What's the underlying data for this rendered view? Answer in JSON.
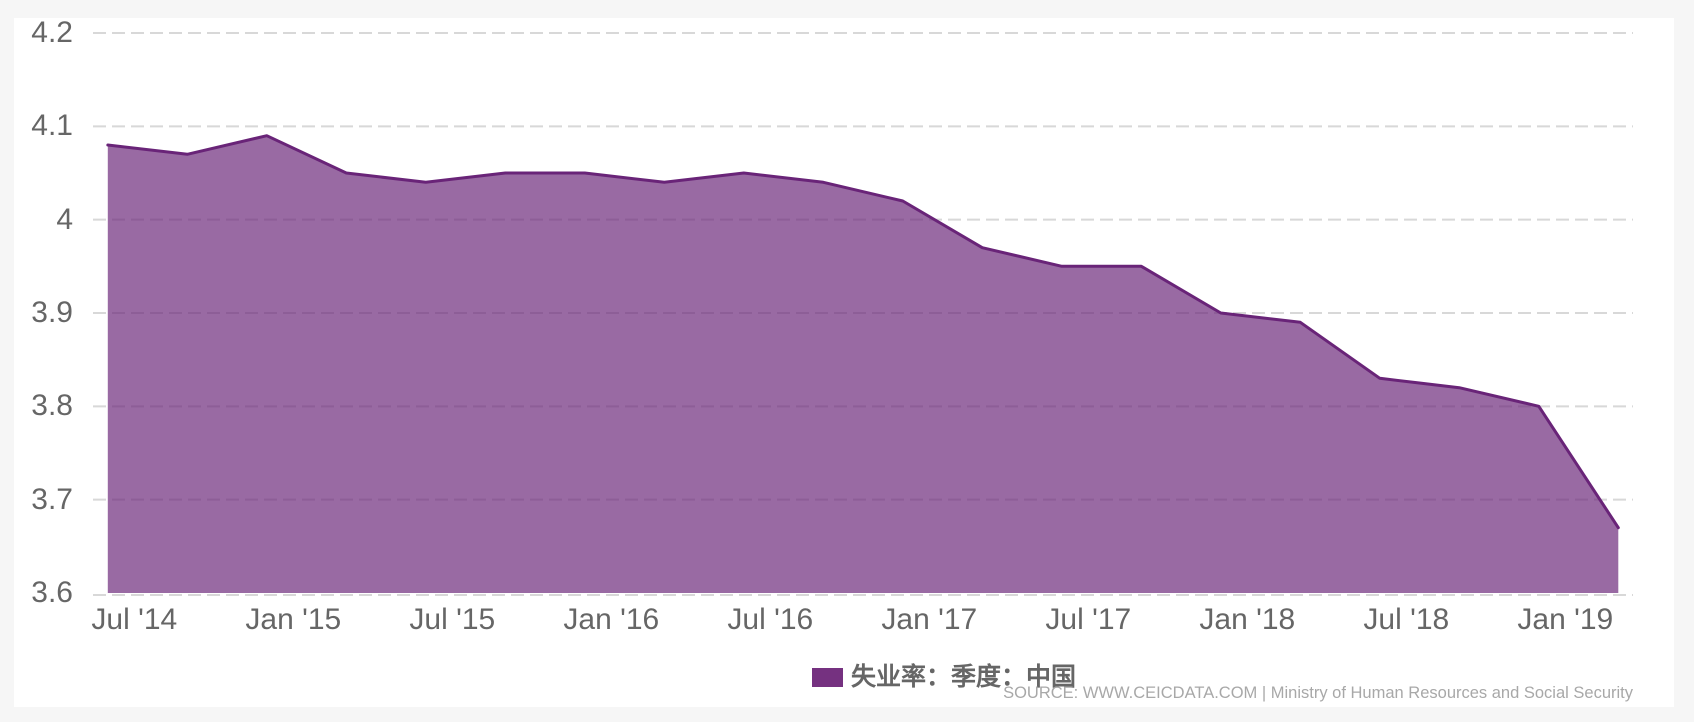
{
  "chart_data": {
    "type": "area",
    "title": "",
    "legend_label": "失业率：季度：中国",
    "legend_position": "bottom-center",
    "source_text": "SOURCE: WWW.CEICDATA.COM | Ministry of Human Resources and Social Security",
    "x": [
      "2014-Q2",
      "2014-Q3",
      "2014-Q4",
      "2015-Q1",
      "2015-Q2",
      "2015-Q3",
      "2015-Q4",
      "2016-Q1",
      "2016-Q2",
      "2016-Q3",
      "2016-Q4",
      "2017-Q1",
      "2017-Q2",
      "2017-Q3",
      "2017-Q4",
      "2018-Q1",
      "2018-Q2",
      "2018-Q3",
      "2018-Q4",
      "2019-Q1"
    ],
    "values": [
      4.08,
      4.07,
      4.09,
      4.05,
      4.04,
      4.05,
      4.05,
      4.04,
      4.05,
      4.04,
      4.02,
      3.97,
      3.95,
      3.95,
      3.9,
      3.89,
      3.83,
      3.82,
      3.8,
      3.67
    ],
    "x_tick_labels": [
      "Jul '14",
      "Jan '15",
      "Jul '15",
      "Jan '16",
      "Jul '16",
      "Jan '17",
      "Jul '17",
      "Jan '18",
      "Jul '18",
      "Jan '19"
    ],
    "y_tick_labels": [
      "3.6",
      "3.7",
      "3.8",
      "3.9",
      "4",
      "4.1",
      "4.2"
    ],
    "y_ticks": [
      3.6,
      3.7,
      3.8,
      3.9,
      4.0,
      4.1,
      4.2
    ],
    "ylim": [
      3.6,
      4.2
    ],
    "xlabel": "",
    "ylabel": "",
    "grid": "horizontal-dashed",
    "colors": {
      "line": "#692478",
      "fill": "rgba(105,36,120,0.68)",
      "legend_swatch": "#753180",
      "gridline": "#d8d8d8",
      "axis_label": "#666666",
      "source_text": "#a8a8a8",
      "panel_background": "#ffffff",
      "outer_background": "#f6f6f6"
    }
  }
}
